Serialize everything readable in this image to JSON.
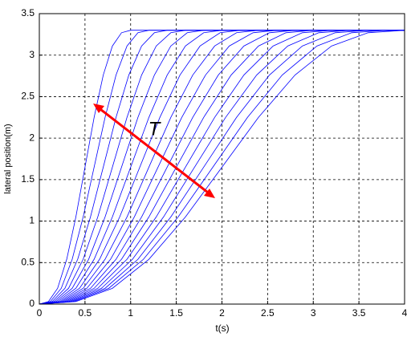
{
  "chart_data": {
    "type": "line",
    "xlabel": "t(s)",
    "ylabel": "lateral position(m)",
    "annotation": "T",
    "xlim": [
      0,
      4
    ],
    "ylim": [
      0,
      3.5
    ],
    "xticks": [
      0,
      0.5,
      1,
      1.5,
      2,
      2.5,
      3,
      3.5,
      4
    ],
    "yticks": [
      0,
      0.5,
      1,
      1.5,
      2,
      2.5,
      3,
      3.5
    ],
    "grid": true,
    "series": [
      {
        "color": "#0000ff",
        "x": [
          0,
          0.1,
          0.2,
          0.3,
          0.4,
          0.5,
          0.6,
          0.7,
          0.8,
          0.9,
          1,
          4
        ],
        "values": [
          0,
          0.03,
          0.19,
          0.54,
          1.05,
          1.65,
          2.25,
          2.76,
          3.11,
          3.27,
          3.3,
          3.3
        ]
      },
      {
        "color": "#0000ff",
        "x": [
          0,
          0.12,
          0.24,
          0.36,
          0.48,
          0.6,
          0.72,
          0.84,
          0.96,
          1.08,
          1.2,
          4
        ],
        "values": [
          0,
          0.03,
          0.19,
          0.54,
          1.05,
          1.65,
          2.25,
          2.76,
          3.11,
          3.27,
          3.3,
          3.3
        ]
      },
      {
        "color": "#0000ff",
        "x": [
          0,
          0.14,
          0.28,
          0.42,
          0.56,
          0.7,
          0.84,
          0.98,
          1.12,
          1.26,
          1.4,
          4
        ],
        "values": [
          0,
          0.03,
          0.19,
          0.54,
          1.05,
          1.65,
          2.25,
          2.76,
          3.11,
          3.27,
          3.3,
          3.3
        ]
      },
      {
        "color": "#0000ff",
        "x": [
          0,
          0.16,
          0.32,
          0.48,
          0.64,
          0.8,
          0.96,
          1.12,
          1.28,
          1.44,
          1.6,
          4
        ],
        "values": [
          0,
          0.03,
          0.19,
          0.54,
          1.05,
          1.65,
          2.25,
          2.76,
          3.11,
          3.27,
          3.3,
          3.3
        ]
      },
      {
        "color": "#0000ff",
        "x": [
          0,
          0.18,
          0.36,
          0.54,
          0.72,
          0.9,
          1.08,
          1.26,
          1.44,
          1.62,
          1.8,
          4
        ],
        "values": [
          0,
          0.03,
          0.19,
          0.54,
          1.05,
          1.65,
          2.25,
          2.76,
          3.11,
          3.27,
          3.3,
          3.3
        ]
      },
      {
        "color": "#0000ff",
        "x": [
          0,
          0.2,
          0.4,
          0.6,
          0.8,
          1,
          1.2,
          1.4,
          1.6,
          1.8,
          2,
          4
        ],
        "values": [
          0,
          0.03,
          0.19,
          0.54,
          1.05,
          1.65,
          2.25,
          2.76,
          3.11,
          3.27,
          3.3,
          3.3
        ]
      },
      {
        "color": "#0000ff",
        "x": [
          0,
          0.22,
          0.44,
          0.66,
          0.88,
          1.1,
          1.32,
          1.54,
          1.76,
          1.98,
          2.2,
          4
        ],
        "values": [
          0,
          0.03,
          0.19,
          0.54,
          1.05,
          1.65,
          2.25,
          2.76,
          3.11,
          3.27,
          3.3,
          3.3
        ]
      },
      {
        "color": "#0000ff",
        "x": [
          0,
          0.24,
          0.48,
          0.72,
          0.96,
          1.2,
          1.44,
          1.68,
          1.92,
          2.16,
          2.4,
          4
        ],
        "values": [
          0,
          0.03,
          0.19,
          0.54,
          1.05,
          1.65,
          2.25,
          2.76,
          3.11,
          3.27,
          3.3,
          3.3
        ]
      },
      {
        "color": "#0000ff",
        "x": [
          0,
          0.26,
          0.52,
          0.78,
          1.04,
          1.3,
          1.56,
          1.82,
          2.08,
          2.34,
          2.6,
          4
        ],
        "values": [
          0,
          0.03,
          0.19,
          0.54,
          1.05,
          1.65,
          2.25,
          2.76,
          3.11,
          3.27,
          3.3,
          3.3
        ]
      },
      {
        "color": "#0000ff",
        "x": [
          0,
          0.28,
          0.56,
          0.84,
          1.12,
          1.4,
          1.68,
          1.96,
          2.24,
          2.52,
          2.8,
          4
        ],
        "values": [
          0,
          0.03,
          0.19,
          0.54,
          1.05,
          1.65,
          2.25,
          2.76,
          3.11,
          3.27,
          3.3,
          3.3
        ]
      },
      {
        "color": "#0000ff",
        "x": [
          0,
          0.3,
          0.6,
          0.9,
          1.2,
          1.5,
          1.8,
          2.1,
          2.4,
          2.7,
          3,
          4
        ],
        "values": [
          0,
          0.03,
          0.19,
          0.54,
          1.05,
          1.65,
          2.25,
          2.76,
          3.11,
          3.27,
          3.3,
          3.3
        ]
      },
      {
        "color": "#0000ff",
        "x": [
          0,
          0.32,
          0.64,
          0.96,
          1.28,
          1.6,
          1.92,
          2.24,
          2.56,
          2.88,
          3.2,
          4
        ],
        "values": [
          0,
          0.03,
          0.19,
          0.54,
          1.05,
          1.65,
          2.25,
          2.76,
          3.11,
          3.27,
          3.3,
          3.3
        ]
      },
      {
        "color": "#0000ff",
        "x": [
          0,
          0.34,
          0.68,
          1.02,
          1.36,
          1.7,
          2.04,
          2.38,
          2.72,
          3.06,
          3.4,
          4
        ],
        "values": [
          0,
          0.03,
          0.19,
          0.54,
          1.05,
          1.65,
          2.25,
          2.76,
          3.11,
          3.27,
          3.3,
          3.3
        ]
      },
      {
        "color": "#0000ff",
        "x": [
          0,
          0.36,
          0.72,
          1.08,
          1.44,
          1.8,
          2.16,
          2.52,
          2.88,
          3.24,
          3.6,
          4
        ],
        "values": [
          0,
          0.03,
          0.19,
          0.54,
          1.05,
          1.65,
          2.25,
          2.76,
          3.11,
          3.27,
          3.3,
          3.3
        ]
      },
      {
        "color": "#0000ff",
        "x": [
          0,
          0.38,
          0.76,
          1.14,
          1.52,
          1.9,
          2.28,
          2.66,
          3.04,
          3.42,
          3.8,
          4
        ],
        "values": [
          0,
          0.03,
          0.19,
          0.54,
          1.05,
          1.65,
          2.25,
          2.76,
          3.11,
          3.27,
          3.3,
          3.3
        ]
      },
      {
        "color": "#0000ff",
        "x": [
          0,
          0.4,
          0.8,
          1.2,
          1.6,
          2,
          2.4,
          2.8,
          3.2,
          3.6,
          4
        ],
        "values": [
          0,
          0.03,
          0.19,
          0.54,
          1.05,
          1.65,
          2.25,
          2.76,
          3.11,
          3.27,
          3.3
        ]
      }
    ]
  }
}
